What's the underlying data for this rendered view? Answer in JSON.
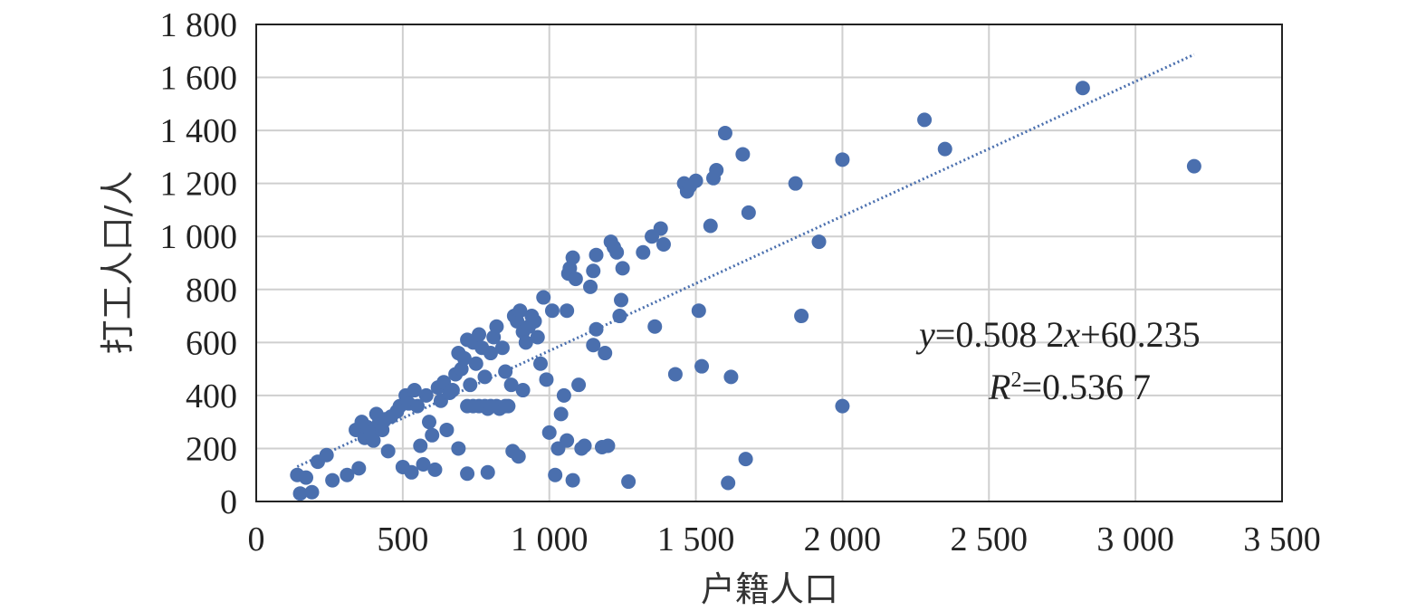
{
  "chart_data": {
    "type": "scatter",
    "xlabel": "户籍人口",
    "ylabel": "打工人口/人",
    "xlim": [
      0,
      3500
    ],
    "ylim": [
      0,
      1800
    ],
    "xticks": [
      0,
      500,
      1000,
      1500,
      2000,
      2500,
      3000,
      3500
    ],
    "yticks": [
      0,
      200,
      400,
      600,
      800,
      1000,
      1200,
      1400,
      1600,
      1800
    ],
    "xtick_labels": [
      "0",
      "500",
      "1 000",
      "1 500",
      "2 000",
      "2 500",
      "3 000",
      "3 500"
    ],
    "ytick_labels": [
      "0",
      "200",
      "400",
      "600",
      "800",
      "1 000",
      "1 200",
      "1 400",
      "1 600",
      "1 800"
    ],
    "grid": true,
    "marker_color": "#4a6fae",
    "trendline": {
      "slope": 0.5082,
      "intercept": 60.235,
      "x_range": [
        140,
        3200
      ],
      "style": "dotted",
      "color": "#4a6fae"
    },
    "annotations": {
      "equation": "y=0.508 2x+60.235",
      "r_squared": "R²=0.536 7"
    },
    "points": [
      [
        140,
        100
      ],
      [
        150,
        30
      ],
      [
        170,
        90
      ],
      [
        190,
        35
      ],
      [
        210,
        150
      ],
      [
        240,
        175
      ],
      [
        260,
        80
      ],
      [
        310,
        100
      ],
      [
        350,
        125
      ],
      [
        340,
        270
      ],
      [
        360,
        300
      ],
      [
        370,
        240
      ],
      [
        380,
        280
      ],
      [
        390,
        260
      ],
      [
        400,
        230
      ],
      [
        410,
        330
      ],
      [
        420,
        300
      ],
      [
        430,
        270
      ],
      [
        440,
        310
      ],
      [
        450,
        190
      ],
      [
        460,
        320
      ],
      [
        480,
        340
      ],
      [
        490,
        360
      ],
      [
        500,
        130
      ],
      [
        510,
        400
      ],
      [
        520,
        370
      ],
      [
        530,
        110
      ],
      [
        540,
        420
      ],
      [
        550,
        360
      ],
      [
        560,
        210
      ],
      [
        570,
        140
      ],
      [
        580,
        400
      ],
      [
        590,
        300
      ],
      [
        600,
        250
      ],
      [
        610,
        120
      ],
      [
        620,
        430
      ],
      [
        630,
        380
      ],
      [
        640,
        450
      ],
      [
        650,
        270
      ],
      [
        660,
        410
      ],
      [
        670,
        420
      ],
      [
        680,
        480
      ],
      [
        690,
        560
      ],
      [
        700,
        500
      ],
      [
        710,
        540
      ],
      [
        720,
        610
      ],
      [
        730,
        440
      ],
      [
        740,
        600
      ],
      [
        750,
        520
      ],
      [
        760,
        630
      ],
      [
        770,
        580
      ],
      [
        780,
        470
      ],
      [
        790,
        350
      ],
      [
        800,
        560
      ],
      [
        810,
        620
      ],
      [
        820,
        660
      ],
      [
        830,
        350
      ],
      [
        840,
        580
      ],
      [
        850,
        490
      ],
      [
        860,
        360
      ],
      [
        870,
        440
      ],
      [
        880,
        700
      ],
      [
        890,
        680
      ],
      [
        900,
        720
      ],
      [
        910,
        640
      ],
      [
        920,
        600
      ],
      [
        930,
        660
      ],
      [
        940,
        700
      ],
      [
        950,
        680
      ],
      [
        960,
        620
      ],
      [
        970,
        520
      ],
      [
        980,
        770
      ],
      [
        990,
        460
      ],
      [
        1000,
        260
      ],
      [
        1010,
        720
      ],
      [
        1020,
        100
      ],
      [
        1030,
        200
      ],
      [
        1040,
        330
      ],
      [
        1050,
        400
      ],
      [
        1060,
        720
      ],
      [
        1065,
        860
      ],
      [
        1070,
        880
      ],
      [
        1080,
        920
      ],
      [
        1090,
        840
      ],
      [
        1100,
        440
      ],
      [
        1110,
        200
      ],
      [
        1120,
        210
      ],
      [
        1140,
        810
      ],
      [
        1150,
        870
      ],
      [
        1160,
        930
      ],
      [
        720,
        360
      ],
      [
        740,
        360
      ],
      [
        760,
        360
      ],
      [
        780,
        360
      ],
      [
        800,
        360
      ],
      [
        820,
        360
      ],
      [
        850,
        360
      ],
      [
        875,
        190
      ],
      [
        895,
        170
      ],
      [
        910,
        420
      ],
      [
        690,
        200
      ],
      [
        720,
        105
      ],
      [
        790,
        110
      ],
      [
        1080,
        80
      ],
      [
        1060,
        230
      ],
      [
        1150,
        590
      ],
      [
        1160,
        650
      ],
      [
        1180,
        205
      ],
      [
        1200,
        210
      ],
      [
        1210,
        980
      ],
      [
        1220,
        960
      ],
      [
        1230,
        940
      ],
      [
        1240,
        700
      ],
      [
        1245,
        760
      ],
      [
        1250,
        880
      ],
      [
        1190,
        560
      ],
      [
        1270,
        75
      ],
      [
        1320,
        940
      ],
      [
        1350,
        1000
      ],
      [
        1360,
        660
      ],
      [
        1380,
        1030
      ],
      [
        1390,
        970
      ],
      [
        1430,
        480
      ],
      [
        1460,
        1200
      ],
      [
        1470,
        1170
      ],
      [
        1480,
        1190
      ],
      [
        1500,
        1210
      ],
      [
        1510,
        720
      ],
      [
        1520,
        510
      ],
      [
        1550,
        1040
      ],
      [
        1560,
        1220
      ],
      [
        1570,
        1250
      ],
      [
        1600,
        1390
      ],
      [
        1610,
        70
      ],
      [
        1620,
        470
      ],
      [
        1660,
        1310
      ],
      [
        1670,
        160
      ],
      [
        1680,
        1090
      ],
      [
        1840,
        1200
      ],
      [
        1860,
        700
      ],
      [
        1920,
        980
      ],
      [
        2000,
        1290
      ],
      [
        2000,
        360
      ],
      [
        2280,
        1440
      ],
      [
        2350,
        1330
      ],
      [
        2820,
        1560
      ],
      [
        3200,
        1265
      ]
    ]
  }
}
